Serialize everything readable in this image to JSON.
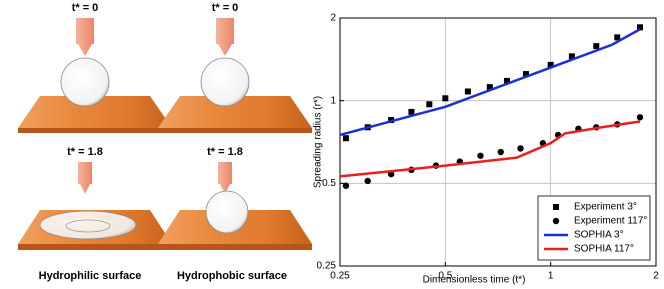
{
  "illustration": {
    "time_labels": [
      "t* = 0",
      "t* = 0",
      "t* = 1.8",
      "t* = 1.8"
    ],
    "captions": [
      "Hydrophilic surface",
      "Hydrophobic surface"
    ]
  },
  "chart_data": {
    "type": "line",
    "x_label": "Dimensionless time (t*)",
    "y_label": "Spreading radius (r*)",
    "xscale": "log",
    "yscale": "log",
    "xlim": [
      0.25,
      2
    ],
    "ylim": [
      0.25,
      2
    ],
    "xticks": [
      0.25,
      0.5,
      1,
      2
    ],
    "yticks": [
      0.25,
      0.5,
      1,
      2
    ],
    "grid": true,
    "legend": "lower right",
    "series": [
      {
        "name": "Experiment 3°",
        "color": "#000000",
        "mode": "markers",
        "marker": "square",
        "x": [
          0.26,
          0.3,
          0.35,
          0.4,
          0.45,
          0.5,
          0.58,
          0.67,
          0.75,
          0.85,
          1.0,
          1.15,
          1.35,
          1.55,
          1.8
        ],
        "values": [
          0.73,
          0.8,
          0.85,
          0.91,
          0.97,
          1.02,
          1.08,
          1.12,
          1.18,
          1.25,
          1.35,
          1.45,
          1.58,
          1.7,
          1.85
        ]
      },
      {
        "name": "Experiment 117°",
        "color": "#000000",
        "mode": "markers",
        "marker": "circle",
        "x": [
          0.26,
          0.3,
          0.35,
          0.4,
          0.47,
          0.55,
          0.63,
          0.72,
          0.82,
          0.95,
          1.05,
          1.2,
          1.35,
          1.55,
          1.8
        ],
        "values": [
          0.49,
          0.51,
          0.54,
          0.56,
          0.58,
          0.6,
          0.63,
          0.65,
          0.67,
          0.7,
          0.75,
          0.79,
          0.8,
          0.82,
          0.87
        ]
      },
      {
        "name": "SOPHIA 3°",
        "color": "#1a2fd6",
        "mode": "lines",
        "x": [
          0.25,
          0.5,
          1,
          1.5,
          1.8
        ],
        "values": [
          0.75,
          0.95,
          1.32,
          1.6,
          1.82
        ]
      },
      {
        "name": "SOPHIA 117°",
        "color": "#e8201e",
        "mode": "lines",
        "x": [
          0.25,
          0.5,
          0.8,
          1,
          1.1,
          1.4,
          1.8
        ],
        "values": [
          0.53,
          0.58,
          0.62,
          0.7,
          0.76,
          0.8,
          0.84
        ]
      }
    ]
  }
}
